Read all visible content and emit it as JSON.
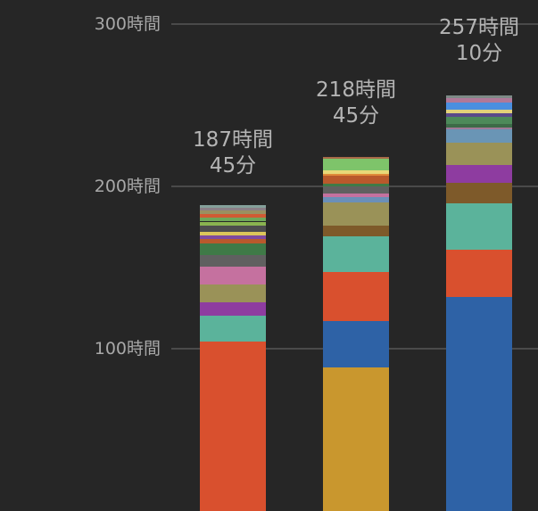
{
  "chart_data": {
    "type": "bar",
    "stacked": true,
    "title": "",
    "xlabel": "",
    "ylabel": "",
    "ylim": [
      0,
      310
    ],
    "y_unit": "時間",
    "y_ticks": [
      {
        "value": 100,
        "label": "100時間"
      },
      {
        "value": 200,
        "label": "200時間"
      },
      {
        "value": 300,
        "label": "300時間"
      }
    ],
    "grid": true,
    "legend": "none",
    "bars": [
      {
        "total_hours": 187.75,
        "label_line1": "187時間",
        "label_line2": "45分",
        "segments": [
          {
            "color": "#d9502e",
            "hours": 104.4
          },
          {
            "color": "#5bb39b",
            "hours": 15.9
          },
          {
            "color": "#8e3ca0",
            "hours": 8.2
          },
          {
            "color": "#9a9258",
            "hours": 11.0
          },
          {
            "color": "#c5719f",
            "hours": 11.0
          },
          {
            "color": "#606060",
            "hours": 7.1
          },
          {
            "color": "#3f7a47",
            "hours": 7.1
          },
          {
            "color": "#b9592c",
            "hours": 2.7
          },
          {
            "color": "#7e4aa0",
            "hours": 2.2
          },
          {
            "color": "#dcc65a",
            "hours": 2.2
          },
          {
            "color": "#4d4d4d",
            "hours": 3.8
          },
          {
            "color": "#8ab350",
            "hours": 2.7
          },
          {
            "color": "#6fa659",
            "hours": 2.2
          },
          {
            "color": "#d05a33",
            "hours": 2.7
          },
          {
            "color": "#9a9060",
            "hours": 2.2
          },
          {
            "color": "#8b7f86",
            "hours": 1.6
          },
          {
            "color": "#84a09a",
            "hours": 1.6
          }
        ]
      },
      {
        "total_hours": 218.75,
        "label_line1": "218時間",
        "label_line2": "45分",
        "segments": [
          {
            "color": "#c9972e",
            "hours": 88.5
          },
          {
            "color": "#2e62a6",
            "hours": 28.6
          },
          {
            "color": "#d9502e",
            "hours": 30.2
          },
          {
            "color": "#5bb39b",
            "hours": 22.0
          },
          {
            "color": "#7e5a2a",
            "hours": 6.6
          },
          {
            "color": "#9a9258",
            "hours": 14.3
          },
          {
            "color": "#6b8fb8",
            "hours": 3.3
          },
          {
            "color": "#c5719f",
            "hours": 2.2
          },
          {
            "color": "#606060",
            "hours": 4.4
          },
          {
            "color": "#3f7a47",
            "hours": 1.6
          },
          {
            "color": "#b9592c",
            "hours": 4.9
          },
          {
            "color": "#e08a3a",
            "hours": 1.1
          },
          {
            "color": "#e8d878",
            "hours": 2.2
          },
          {
            "color": "#7ec46a",
            "hours": 7.1
          },
          {
            "color": "#a86a48",
            "hours": 1.1
          }
        ]
      },
      {
        "total_hours": 257.17,
        "label_line1": "257時間",
        "label_line2": "10分",
        "segments": [
          {
            "color": "#2e62a6",
            "hours": 132.0
          },
          {
            "color": "#d9502e",
            "hours": 29.1
          },
          {
            "color": "#5bb39b",
            "hours": 28.6
          },
          {
            "color": "#7e5a2a",
            "hours": 12.6
          },
          {
            "color": "#8e3ca0",
            "hours": 11.0
          },
          {
            "color": "#9a9258",
            "hours": 13.7
          },
          {
            "color": "#6a95b5",
            "hours": 8.2
          },
          {
            "color": "#a07a98",
            "hours": 1.1
          },
          {
            "color": "#3d6b48",
            "hours": 2.2
          },
          {
            "color": "#4d8a5a",
            "hours": 4.4
          },
          {
            "color": "#5a4a8a",
            "hours": 2.2
          },
          {
            "color": "#e2d27a",
            "hours": 2.2
          },
          {
            "color": "#4a8fe0",
            "hours": 4.4
          },
          {
            "color": "#b07898",
            "hours": 2.7
          },
          {
            "color": "#7d8a86",
            "hours": 1.6
          }
        ]
      }
    ]
  }
}
